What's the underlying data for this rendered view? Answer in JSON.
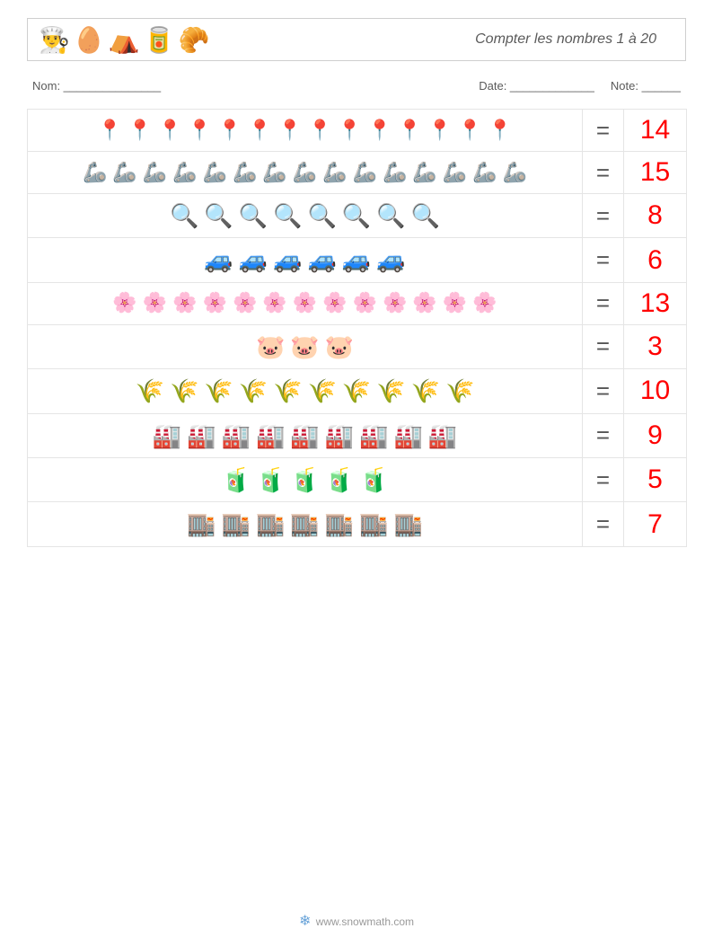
{
  "header": {
    "icons": [
      "👨‍🍳",
      "🥚",
      "⛺",
      "🥫",
      "🥐"
    ],
    "title": "Compter les nombres 1 à 20"
  },
  "meta": {
    "nom_label": "Nom: _______________",
    "date_label": "Date: _____________",
    "note_label": "Note: ______"
  },
  "equals": "=",
  "rows": [
    {
      "emoji": "📍",
      "count": 14,
      "answer": "14",
      "size": "small"
    },
    {
      "emoji": "🦾",
      "count": 15,
      "answer": "15",
      "size": "small"
    },
    {
      "emoji": "🔍",
      "count": 8,
      "answer": "8",
      "size": ""
    },
    {
      "emoji": "🚙",
      "count": 6,
      "answer": "6",
      "size": ""
    },
    {
      "emoji": "🌸",
      "count": 13,
      "answer": "13",
      "size": "small"
    },
    {
      "emoji": "🐷",
      "count": 3,
      "answer": "3",
      "size": ""
    },
    {
      "emoji": "🌾",
      "count": 10,
      "answer": "10",
      "size": ""
    },
    {
      "emoji": "🏭",
      "count": 9,
      "answer": "9",
      "size": ""
    },
    {
      "emoji": "🧃",
      "count": 5,
      "answer": "5",
      "size": ""
    },
    {
      "emoji": "🏬",
      "count": 7,
      "answer": "7",
      "size": ""
    }
  ],
  "footer": {
    "text": "www.snowmath.com"
  },
  "colors": {
    "border": "#e5e5e5",
    "header_border": "#cfcfcf",
    "text": "#5a5a5a",
    "answer": "#ff0000",
    "background": "#ffffff"
  }
}
